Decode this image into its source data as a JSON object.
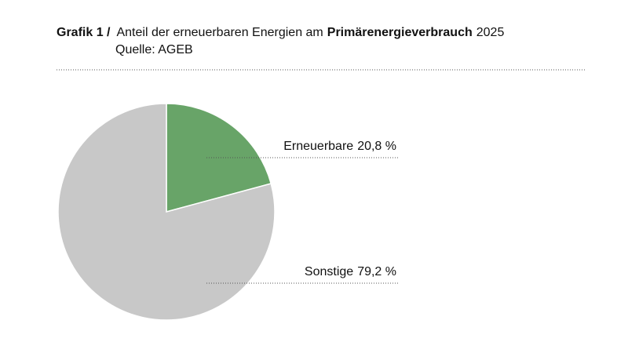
{
  "chart_data": {
    "type": "pie",
    "title_parts": [
      {
        "text": "Grafik 1 /",
        "bold": true
      },
      {
        "text": "Anteil der erneuerbaren Energien am",
        "bold": false
      },
      {
        "text": "Primärenergieverbrauch",
        "bold": true
      },
      {
        "text": "2025",
        "bold": false
      }
    ],
    "subtitle": "Quelle: AGEB",
    "categories": [
      "Erneuerbare",
      "Sonstige"
    ],
    "values": [
      20.8,
      79.2
    ],
    "value_labels": [
      "20,8 %",
      "79,2 %"
    ],
    "colors": [
      "#68a468",
      "#c8c8c8"
    ]
  }
}
